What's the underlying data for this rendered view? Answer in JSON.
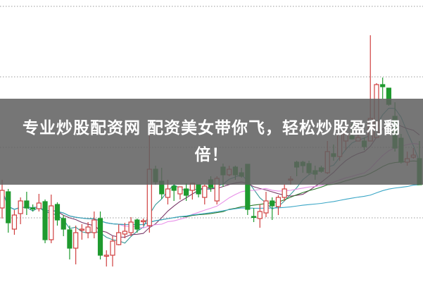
{
  "banner": {
    "title_line1": "专业炒股配资网 配资美女带你飞，轻松炒股盈利翻",
    "title_line2": "倍！"
  },
  "colors": {
    "up": "#d04040",
    "down": "#1f9a2f",
    "grid": "#9a9a9a",
    "ma_colors": [
      "#3a9a9a",
      "#7a3a6a",
      "#e890e8",
      "#2a7a2a",
      "#3aa6c6"
    ]
  },
  "chart_data": {
    "type": "candlestick",
    "grid": true,
    "gridlines": "horizontal dotted",
    "moving_averages": [
      5,
      10,
      20,
      30,
      60
    ],
    "candle_fields": [
      "open",
      "close",
      "high",
      "low"
    ],
    "candles": [
      [
        10.5,
        13.0,
        14.5,
        9.0
      ],
      [
        12.8,
        8.4,
        13.2,
        7.0
      ],
      [
        7.5,
        9.5,
        10.2,
        6.7
      ],
      [
        9.7,
        11.5,
        12.0,
        8.2
      ],
      [
        11.5,
        10.5,
        12.8,
        9.5
      ],
      [
        10.5,
        10.4,
        11.0,
        10.0
      ],
      [
        10.4,
        11.2,
        12.5,
        10.0
      ],
      [
        11.4,
        6.0,
        11.7,
        5.5
      ],
      [
        6.0,
        10.8,
        12.4,
        5.5
      ],
      [
        11.0,
        8.8,
        11.3,
        8.0
      ],
      [
        9.0,
        7.5,
        9.5,
        6.5
      ],
      [
        7.4,
        4.8,
        8.0,
        3.2
      ],
      [
        4.8,
        7.0,
        8.0,
        2.5
      ],
      [
        7.5,
        7.5,
        8.2,
        6.0
      ],
      [
        7.0,
        7.8,
        8.5,
        6.2
      ],
      [
        7.0,
        8.8,
        10.0,
        6.2
      ],
      [
        9.0,
        3.8,
        10.0,
        3.2
      ],
      [
        3.8,
        3.8,
        4.5,
        2.2
      ],
      [
        3.8,
        5.8,
        6.5,
        2.2
      ],
      [
        5.3,
        7.0,
        8.2,
        5.2
      ],
      [
        6.8,
        7.2,
        8.4,
        6.2
      ],
      [
        7.0,
        8.5,
        9.2,
        6.5
      ],
      [
        8.8,
        7.5,
        9.0,
        7.0
      ],
      [
        8.7,
        8.7,
        9.0,
        8.0
      ],
      [
        8.0,
        16.0,
        21.0,
        7.0
      ],
      [
        16.0,
        14.2,
        16.5,
        13.8
      ],
      [
        14.3,
        12.5,
        16.2,
        11.8
      ],
      [
        12.0,
        13.2,
        14.5,
        11.0
      ],
      [
        13.6,
        13.0,
        13.8,
        11.5
      ],
      [
        12.5,
        13.5,
        13.5,
        11.7
      ],
      [
        13.2,
        12.3,
        14.0,
        11.5
      ],
      [
        13.0,
        14.0,
        14.0,
        11.7
      ],
      [
        13.8,
        12.5,
        13.8,
        12.0
      ],
      [
        12.0,
        13.6,
        13.8,
        11.0
      ],
      [
        14.5,
        13.4,
        15.0,
        12.8
      ],
      [
        11.5,
        14.7,
        15.0,
        11.0
      ],
      [
        16.3,
        15.2,
        16.8,
        13.5
      ],
      [
        15.2,
        16.0,
        16.5,
        15.0
      ],
      [
        16.3,
        15.2,
        16.5,
        14.5
      ],
      [
        15.5,
        15.0,
        16.2,
        14.8
      ],
      [
        16.7,
        10.3,
        16.7,
        9.5
      ],
      [
        9.3,
        9.2,
        10.5,
        8.5
      ],
      [
        9.0,
        10.0,
        11.0,
        7.7
      ],
      [
        9.8,
        11.5,
        12.8,
        9.2
      ],
      [
        11.5,
        10.8,
        12.0,
        8.8
      ],
      [
        10.7,
        12.0,
        12.3,
        9.5
      ],
      [
        12.0,
        13.2,
        13.8,
        11.5
      ],
      [
        14.5,
        14.6,
        15.0,
        13.8
      ],
      [
        17.0,
        16.3,
        17.2,
        15.0
      ],
      [
        17.0,
        16.5,
        17.2,
        15.5
      ],
      [
        16.8,
        15.5,
        17.2,
        15.2
      ],
      [
        15.8,
        15.3,
        16.5,
        14.5
      ],
      [
        16.2,
        15.7,
        16.5,
        15.5
      ],
      [
        15.5,
        18.5,
        20.0,
        15.3
      ],
      [
        18.2,
        17.8,
        19.5,
        17.2
      ],
      [
        17.8,
        21.0,
        21.2,
        17.2
      ],
      [
        20.0,
        21.0,
        22.5,
        18.7
      ],
      [
        20.7,
        20.3,
        22.5,
        20.2
      ],
      [
        20.0,
        20.5,
        21.0,
        20.0
      ],
      [
        20.0,
        19.2,
        20.5,
        18.7
      ],
      [
        20.0,
        23.2,
        35.0,
        20.0
      ],
      [
        20.5,
        28.0,
        28.2,
        20.5
      ],
      [
        28.0,
        27.7,
        29.0,
        26.0
      ],
      [
        27.5,
        25.2,
        27.5,
        25.0
      ],
      [
        23.5,
        19.0,
        25.5,
        18.5
      ],
      [
        20.4,
        17.0,
        21.0,
        16.8
      ],
      [
        17.0,
        17.5,
        18.5,
        16.5
      ],
      [
        17.7,
        18.0,
        19.0,
        17.5
      ],
      [
        17.5,
        13.8,
        20.0,
        13.8
      ]
    ],
    "ylim": [
      0,
      40
    ]
  }
}
